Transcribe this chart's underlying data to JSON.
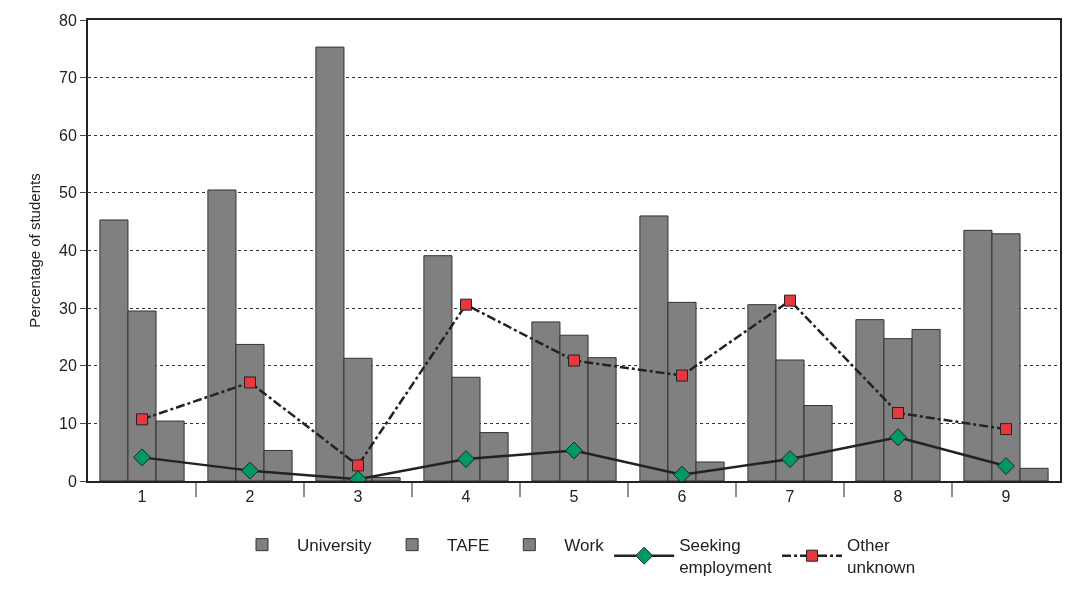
{
  "chart_data": {
    "type": "bar",
    "ylabel": "Percentage of students",
    "categories": [
      "1",
      "2",
      "3",
      "4",
      "5",
      "6",
      "7",
      "8",
      "9"
    ],
    "series": [
      {
        "name": "University",
        "color": "#808080",
        "values": [
          45.3,
          50.5,
          75.3,
          39.1,
          27.6,
          46.0,
          30.6,
          28.0,
          43.5
        ]
      },
      {
        "name": "TAFE",
        "color": "#808080",
        "values": [
          29.5,
          23.7,
          21.3,
          18.0,
          25.3,
          31.0,
          21.0,
          24.7,
          42.9
        ]
      },
      {
        "name": "Work",
        "color": "#808080",
        "values": [
          10.4,
          5.3,
          0.6,
          8.4,
          21.4,
          3.3,
          13.1,
          26.3,
          2.2
        ]
      },
      {
        "name": "Seeking employment",
        "type": "line",
        "color": "#009966",
        "marker": "diamond",
        "line_style": "solid",
        "values": [
          4.1,
          1.8,
          0.3,
          3.8,
          5.3,
          1.1,
          3.8,
          7.6,
          2.6
        ]
      },
      {
        "name": "Other unknown",
        "type": "line",
        "color": "#e8373f",
        "marker": "square",
        "line_style": "dashed",
        "values": [
          10.7,
          17.1,
          2.7,
          30.6,
          20.9,
          18.3,
          31.3,
          11.8,
          9.0
        ]
      }
    ],
    "ylim": [
      0,
      80
    ],
    "yticks": [
      0,
      10,
      20,
      30,
      40,
      50,
      60,
      70,
      80
    ],
    "grid": "y",
    "legend": "bottom"
  }
}
